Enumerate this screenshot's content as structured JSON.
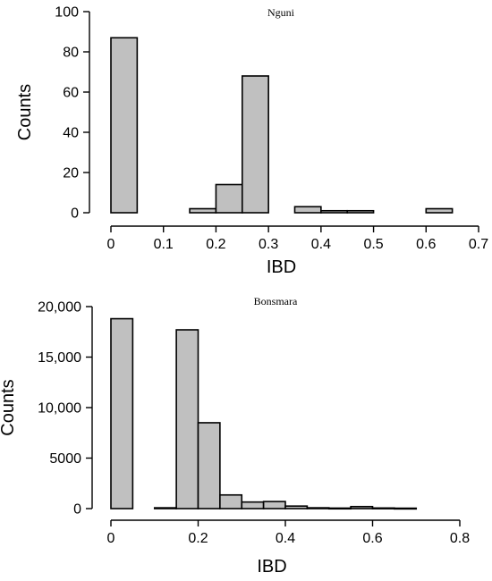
{
  "chart_data": [
    {
      "type": "bar",
      "title": "Nguni",
      "xlabel": "IBD",
      "ylabel": "Counts",
      "xlim": [
        0,
        0.7
      ],
      "ylim": [
        0,
        100
      ],
      "xticks": [
        "0",
        "0.1",
        "0.2",
        "0.3",
        "0.4",
        "0.5",
        "0.6",
        "0.7"
      ],
      "yticks": [
        "0",
        "20",
        "40",
        "60",
        "80",
        "100"
      ],
      "bin_width": 0.05,
      "bins": [
        {
          "x0": 0.0,
          "x1": 0.05,
          "count": 87
        },
        {
          "x0": 0.05,
          "x1": 0.1,
          "count": 0
        },
        {
          "x0": 0.1,
          "x1": 0.15,
          "count": 0
        },
        {
          "x0": 0.15,
          "x1": 0.2,
          "count": 2
        },
        {
          "x0": 0.2,
          "x1": 0.25,
          "count": 14
        },
        {
          "x0": 0.25,
          "x1": 0.3,
          "count": 68
        },
        {
          "x0": 0.3,
          "x1": 0.35,
          "count": 0
        },
        {
          "x0": 0.35,
          "x1": 0.4,
          "count": 3
        },
        {
          "x0": 0.4,
          "x1": 0.45,
          "count": 1
        },
        {
          "x0": 0.45,
          "x1": 0.5,
          "count": 1
        },
        {
          "x0": 0.5,
          "x1": 0.55,
          "count": 0
        },
        {
          "x0": 0.55,
          "x1": 0.6,
          "count": 0
        },
        {
          "x0": 0.6,
          "x1": 0.65,
          "count": 2
        }
      ],
      "grid": false
    },
    {
      "type": "bar",
      "title": "Bonsmara",
      "xlabel": "IBD",
      "ylabel": "Counts",
      "xlim": [
        0,
        0.8
      ],
      "ylim": [
        0,
        20000
      ],
      "xticks": [
        "0",
        "0.2",
        "0.4",
        "0.6",
        "0.8"
      ],
      "yticks": [
        "0",
        "5000",
        "10,000",
        "15,000",
        "20,000"
      ],
      "bin_width": 0.05,
      "bins": [
        {
          "x0": 0.0,
          "x1": 0.05,
          "count": 18800
        },
        {
          "x0": 0.05,
          "x1": 0.1,
          "count": 0
        },
        {
          "x0": 0.1,
          "x1": 0.15,
          "count": 80
        },
        {
          "x0": 0.15,
          "x1": 0.2,
          "count": 17700
        },
        {
          "x0": 0.2,
          "x1": 0.25,
          "count": 8500
        },
        {
          "x0": 0.25,
          "x1": 0.3,
          "count": 1350
        },
        {
          "x0": 0.3,
          "x1": 0.35,
          "count": 650
        },
        {
          "x0": 0.35,
          "x1": 0.4,
          "count": 700
        },
        {
          "x0": 0.4,
          "x1": 0.45,
          "count": 250
        },
        {
          "x0": 0.45,
          "x1": 0.5,
          "count": 80
        },
        {
          "x0": 0.5,
          "x1": 0.55,
          "count": 50
        },
        {
          "x0": 0.55,
          "x1": 0.6,
          "count": 200
        },
        {
          "x0": 0.6,
          "x1": 0.65,
          "count": 60
        },
        {
          "x0": 0.65,
          "x1": 0.7,
          "count": 40
        }
      ],
      "grid": false
    }
  ]
}
